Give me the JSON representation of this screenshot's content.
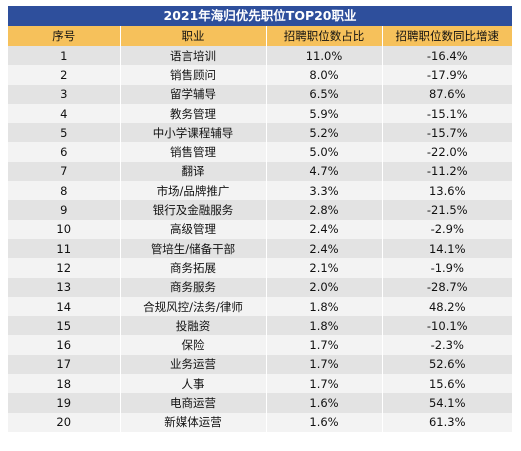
{
  "title": "2021年海归优先职位TOP20职业",
  "headers": [
    "序号",
    "职业",
    "招聘职位数占比",
    "招聘职位数同比增速"
  ],
  "rows": [
    {
      "rank": "1",
      "job": "语言培训",
      "share": "11.0%",
      "growth": "-16.4%"
    },
    {
      "rank": "2",
      "job": "销售顾问",
      "share": "8.0%",
      "growth": "-17.9%"
    },
    {
      "rank": "3",
      "job": "留学辅导",
      "share": "6.5%",
      "growth": "87.6%"
    },
    {
      "rank": "4",
      "job": "教务管理",
      "share": "5.9%",
      "growth": "-15.1%"
    },
    {
      "rank": "5",
      "job": "中小学课程辅导",
      "share": "5.2%",
      "growth": "-15.7%"
    },
    {
      "rank": "6",
      "job": "销售管理",
      "share": "5.0%",
      "growth": "-22.0%"
    },
    {
      "rank": "7",
      "job": "翻译",
      "share": "4.7%",
      "growth": "-11.2%"
    },
    {
      "rank": "8",
      "job": "市场/品牌推广",
      "share": "3.3%",
      "growth": "13.6%"
    },
    {
      "rank": "9",
      "job": "银行及金融服务",
      "share": "2.8%",
      "growth": "-21.5%"
    },
    {
      "rank": "10",
      "job": "高级管理",
      "share": "2.4%",
      "growth": "-2.9%"
    },
    {
      "rank": "11",
      "job": "管培生/储备干部",
      "share": "2.4%",
      "growth": "14.1%"
    },
    {
      "rank": "12",
      "job": "商务拓展",
      "share": "2.1%",
      "growth": "-1.9%"
    },
    {
      "rank": "13",
      "job": "商务服务",
      "share": "2.0%",
      "growth": "-28.7%"
    },
    {
      "rank": "14",
      "job": "合规风控/法务/律师",
      "share": "1.8%",
      "growth": "48.2%"
    },
    {
      "rank": "15",
      "job": "投融资",
      "share": "1.8%",
      "growth": "-10.1%"
    },
    {
      "rank": "16",
      "job": "保险",
      "share": "1.7%",
      "growth": "-2.3%"
    },
    {
      "rank": "17",
      "job": "业务运营",
      "share": "1.7%",
      "growth": "52.6%"
    },
    {
      "rank": "18",
      "job": "人事",
      "share": "1.7%",
      "growth": "15.6%"
    },
    {
      "rank": "19",
      "job": "电商运营",
      "share": "1.6%",
      "growth": "54.1%"
    },
    {
      "rank": "20",
      "job": "新媒体运营",
      "share": "1.6%",
      "growth": "61.3%"
    }
  ],
  "colors": {
    "title_bg": "#2e4f9c",
    "header_bg": "#f6c15b",
    "row_dark": "#e3e3e3",
    "row_light": "#f3f3f3"
  }
}
